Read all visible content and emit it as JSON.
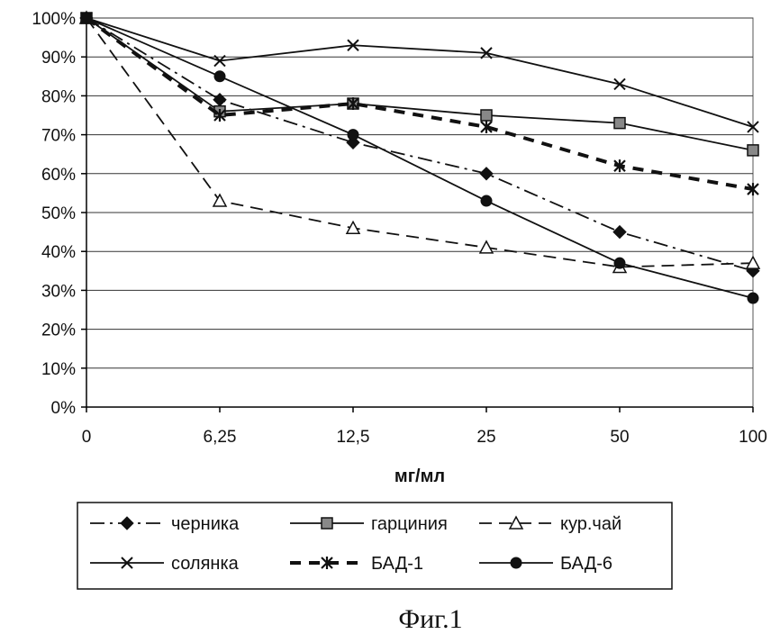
{
  "chart_data": {
    "type": "line",
    "title": "",
    "xlabel": "мг/мл",
    "ylabel": "",
    "categories": [
      "0",
      "6,25",
      "12,5",
      "25",
      "50",
      "100"
    ],
    "y_ticks": [
      "0%",
      "10%",
      "20%",
      "30%",
      "40%",
      "50%",
      "60%",
      "70%",
      "80%",
      "90%",
      "100%"
    ],
    "ylim": [
      0,
      100
    ],
    "grid": true,
    "legend_position": "bottom",
    "series": [
      {
        "name": "черника",
        "values": [
          100,
          79,
          68,
          60,
          45,
          35
        ],
        "line": "dashdot",
        "marker": "diamond"
      },
      {
        "name": "гарциния",
        "values": [
          100,
          76,
          78,
          75,
          73,
          66
        ],
        "line": "solid",
        "marker": "square"
      },
      {
        "name": "кур.чай",
        "values": [
          100,
          53,
          46,
          41,
          36,
          37
        ],
        "line": "dashed",
        "marker": "triangle"
      },
      {
        "name": "солянка",
        "values": [
          100,
          89,
          93,
          91,
          83,
          72
        ],
        "line": "solid",
        "marker": "x"
      },
      {
        "name": "БАД-1",
        "values": [
          100,
          75,
          78,
          72,
          62,
          56
        ],
        "line": "thickdash",
        "marker": "star"
      },
      {
        "name": "БАД-6",
        "values": [
          100,
          85,
          70,
          53,
          37,
          28
        ],
        "line": "solid",
        "marker": "circle"
      }
    ]
  },
  "caption": "Фиг.1"
}
